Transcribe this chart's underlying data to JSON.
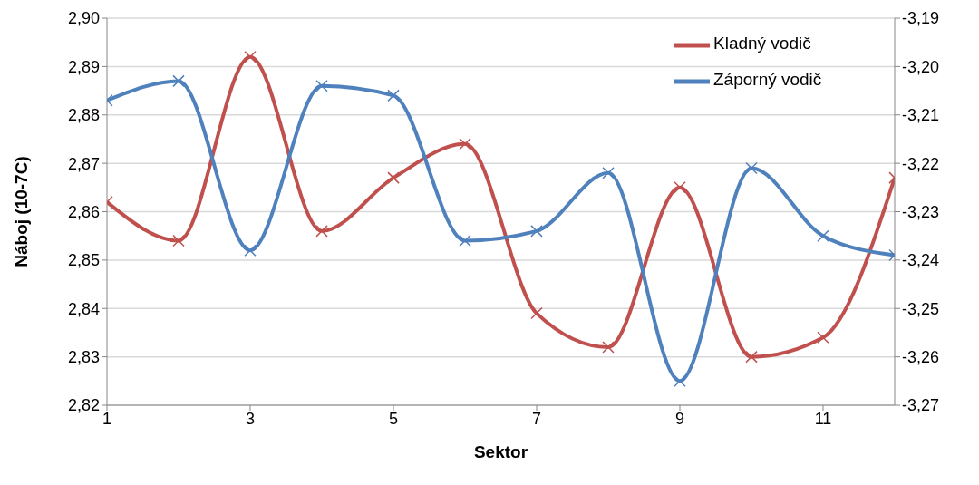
{
  "chart_data": {
    "type": "line",
    "xlabel": "Sektor",
    "ylabel": "Náboj (10-7C)",
    "x": [
      1,
      2,
      3,
      4,
      5,
      6,
      7,
      8,
      9,
      10,
      11,
      12
    ],
    "series": [
      {
        "name": "Kladný vodič",
        "color": "#c0504d",
        "values": [
          2.862,
          2.854,
          2.892,
          2.856,
          2.867,
          2.874,
          2.839,
          2.832,
          2.865,
          2.83,
          2.834,
          2.867
        ]
      },
      {
        "name": "Záporný vodič",
        "color": "#4f81bd",
        "axis": "y2",
        "values": [
          -3.207,
          -3.203,
          -3.238,
          -3.204,
          -3.206,
          -3.236,
          -3.234,
          -3.222,
          -3.265,
          -3.221,
          -3.235,
          -3.239
        ]
      }
    ],
    "xlim": [
      1,
      12
    ],
    "xticks": [
      1,
      3,
      5,
      7,
      9,
      11
    ],
    "ylim": [
      2.82,
      2.9
    ],
    "yticks": [
      {
        "value": 2.82,
        "label": "2,82"
      },
      {
        "value": 2.83,
        "label": "2,83"
      },
      {
        "value": 2.84,
        "label": "2,84"
      },
      {
        "value": 2.85,
        "label": "2,85"
      },
      {
        "value": 2.86,
        "label": "2,86"
      },
      {
        "value": 2.87,
        "label": "2,87"
      },
      {
        "value": 2.88,
        "label": "2,88"
      },
      {
        "value": 2.89,
        "label": "2,89"
      },
      {
        "value": 2.9,
        "label": "2,90"
      }
    ],
    "y2lim": [
      -3.27,
      -3.19
    ],
    "y2ticks": [
      {
        "value": -3.27,
        "label": "-3,27"
      },
      {
        "value": -3.26,
        "label": "-3,26"
      },
      {
        "value": -3.25,
        "label": "-3,25"
      },
      {
        "value": -3.24,
        "label": "-3,24"
      },
      {
        "value": -3.23,
        "label": "-3,23"
      },
      {
        "value": -3.22,
        "label": "-3,22"
      },
      {
        "value": -3.21,
        "label": "-3,21"
      },
      {
        "value": -3.2,
        "label": "-3,20"
      },
      {
        "value": -3.19,
        "label": "-3,19"
      }
    ],
    "grid": "y",
    "legend": "top right",
    "marker": "cross",
    "line_style": "solid"
  }
}
